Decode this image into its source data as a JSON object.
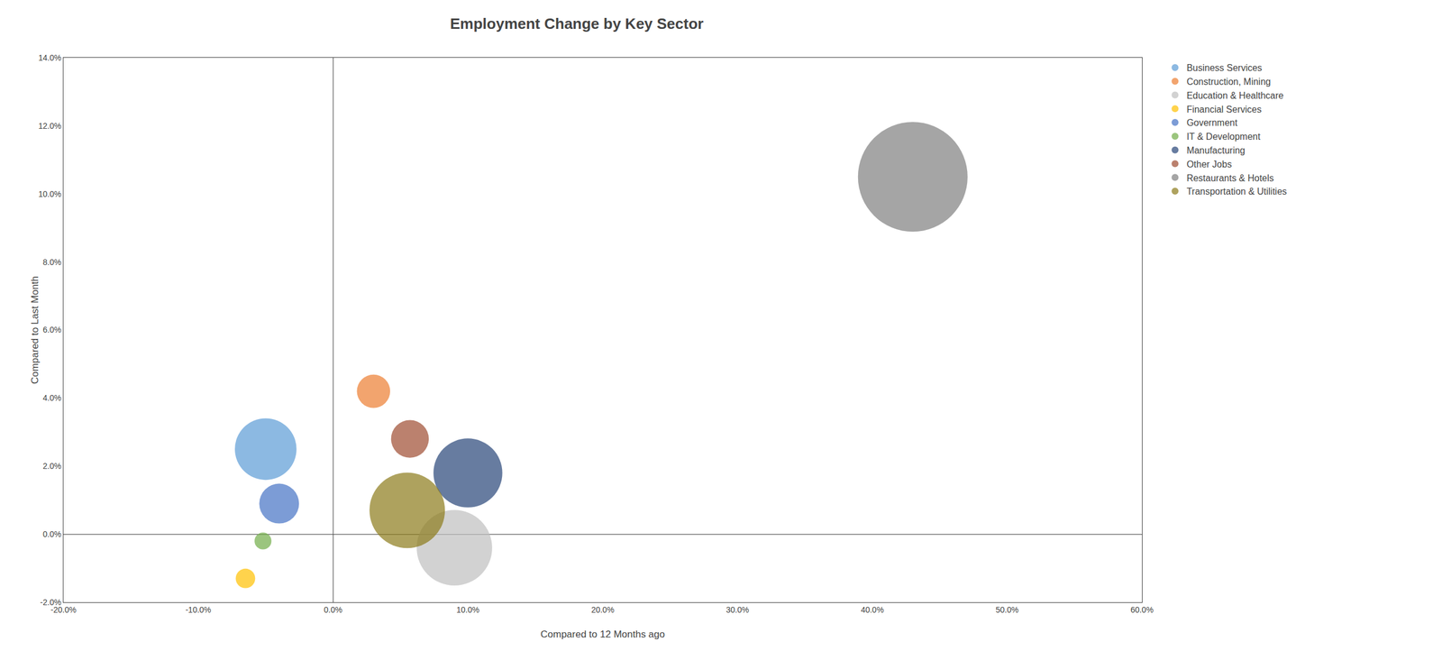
{
  "chart_data": {
    "type": "scatter",
    "title": "Employment Change by Key Sector",
    "xlabel": "Compared to 12 Months ago",
    "ylabel": "Compared to Last Month",
    "xlim": [
      -0.2,
      0.6
    ],
    "ylim": [
      -0.02,
      0.14
    ],
    "xticks": [
      {
        "value": -0.2,
        "label": "-20.0%"
      },
      {
        "value": -0.1,
        "label": "-10.0%"
      },
      {
        "value": 0.0,
        "label": "0.0%"
      },
      {
        "value": 0.1,
        "label": "10.0%"
      },
      {
        "value": 0.2,
        "label": "20.0%"
      },
      {
        "value": 0.3,
        "label": "30.0%"
      },
      {
        "value": 0.4,
        "label": "40.0%"
      },
      {
        "value": 0.5,
        "label": "50.0%"
      },
      {
        "value": 0.6,
        "label": "60.0%"
      }
    ],
    "yticks": [
      {
        "value": -0.02,
        "label": "-2.0%"
      },
      {
        "value": 0.0,
        "label": "0.0%"
      },
      {
        "value": 0.02,
        "label": "2.0%"
      },
      {
        "value": 0.04,
        "label": "4.0%"
      },
      {
        "value": 0.06,
        "label": "6.0%"
      },
      {
        "value": 0.08,
        "label": "8.0%"
      },
      {
        "value": 0.1,
        "label": "10.0%"
      },
      {
        "value": 0.12,
        "label": "12.0%"
      },
      {
        "value": 0.14,
        "label": "14.0%"
      }
    ],
    "grid": false,
    "legend": "right",
    "series": [
      {
        "name": "Business Services",
        "color": "#5B9BD5",
        "x": [
          -0.05
        ],
        "values": [
          0.025
        ],
        "size": [
          12000
        ]
      },
      {
        "name": "Construction, Mining",
        "color": "#ED7D31",
        "x": [
          0.03
        ],
        "values": [
          0.042
        ],
        "size": [
          3500
        ]
      },
      {
        "name": "Education & Healthcare",
        "color": "#BFBFBF",
        "x": [
          0.09
        ],
        "values": [
          -0.004
        ],
        "size": [
          18000
        ]
      },
      {
        "name": "Financial Services",
        "color": "#FFC000",
        "x": [
          -0.065
        ],
        "values": [
          -0.013
        ],
        "size": [
          1200
        ]
      },
      {
        "name": "Government",
        "color": "#4472C4",
        "x": [
          -0.04
        ],
        "values": [
          0.009
        ],
        "size": [
          5000
        ]
      },
      {
        "name": "IT & Development",
        "color": "#70AD47",
        "x": [
          -0.052
        ],
        "values": [
          -0.002
        ],
        "size": [
          900
        ]
      },
      {
        "name": "Manufacturing",
        "color": "#264478",
        "x": [
          0.1
        ],
        "values": [
          0.018
        ],
        "size": [
          15000
        ]
      },
      {
        "name": "Other Jobs",
        "color": "#9E4B30",
        "x": [
          0.057
        ],
        "values": [
          0.028
        ],
        "size": [
          4500
        ]
      },
      {
        "name": "Restaurants & Hotels",
        "color": "#7F7F7F",
        "x": [
          0.43
        ],
        "values": [
          0.105
        ],
        "size": [
          38000
        ]
      },
      {
        "name": "Transportation & Utilities",
        "color": "#8B7A1A",
        "x": [
          0.055
        ],
        "values": [
          0.007
        ],
        "size": [
          18000
        ]
      }
    ]
  }
}
